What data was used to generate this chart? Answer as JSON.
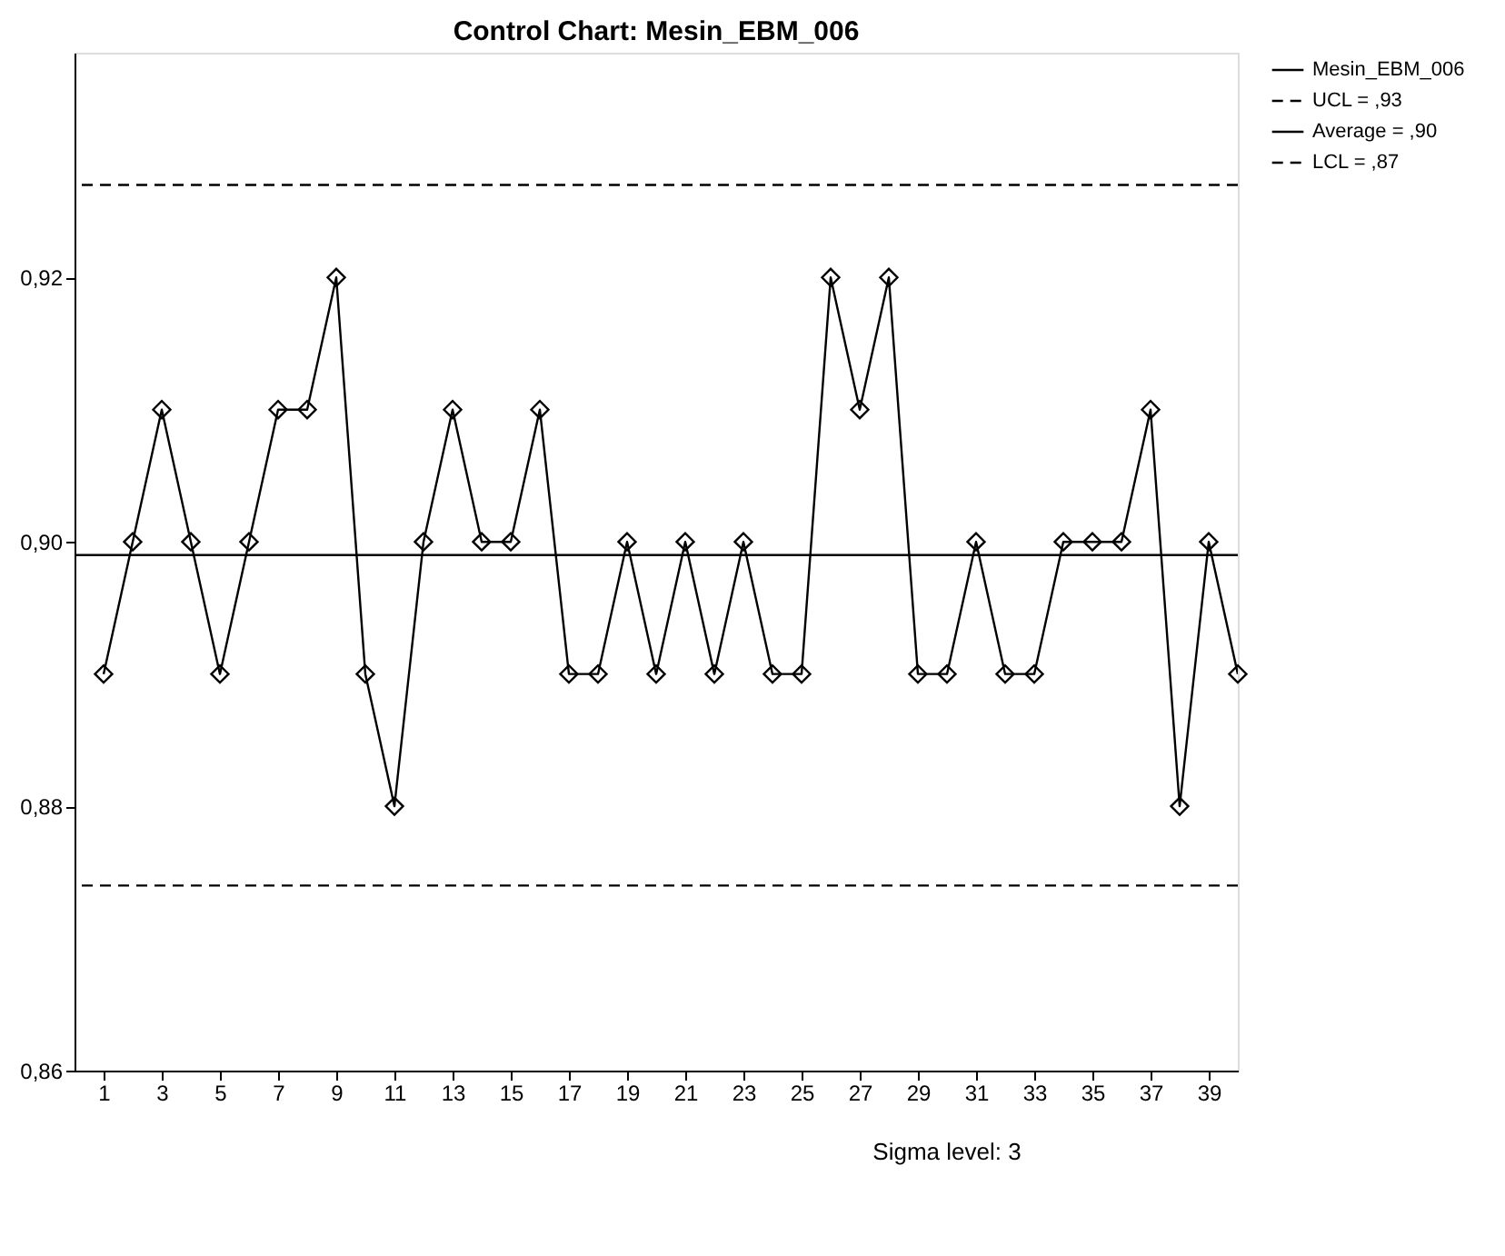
{
  "chart_data": {
    "type": "line",
    "title": "Control Chart: Mesin_EBM_006",
    "x": [
      1,
      2,
      3,
      4,
      5,
      6,
      7,
      8,
      9,
      10,
      11,
      12,
      13,
      14,
      15,
      16,
      17,
      18,
      19,
      20,
      21,
      22,
      23,
      24,
      25,
      26,
      27,
      28,
      29,
      30,
      31,
      32,
      33,
      34,
      35,
      36,
      37,
      38,
      39,
      40
    ],
    "series": [
      {
        "name": "Mesin_EBM_006",
        "color": "#000000",
        "values": [
          0.89,
          0.9,
          0.91,
          0.9,
          0.89,
          0.9,
          0.91,
          0.91,
          0.92,
          0.89,
          0.88,
          0.9,
          0.91,
          0.9,
          0.9,
          0.91,
          0.89,
          0.89,
          0.9,
          0.89,
          0.9,
          0.89,
          0.9,
          0.89,
          0.89,
          0.92,
          0.91,
          0.92,
          0.89,
          0.89,
          0.9,
          0.89,
          0.89,
          0.9,
          0.9,
          0.9,
          0.91,
          0.88,
          0.9,
          0.89
        ]
      }
    ],
    "marker": "diamond",
    "line_style": "solid",
    "ref_lines": [
      {
        "axis": "y",
        "value": 0.927,
        "label": "UCL = ,93",
        "line_style": "dashed",
        "color": "#000000"
      },
      {
        "axis": "y",
        "value": 0.899,
        "label": "Average = ,90",
        "line_style": "solid",
        "color": "#000000"
      },
      {
        "axis": "y",
        "value": 0.874,
        "label": "LCL = ,87",
        "line_style": "dashed",
        "color": "#000000"
      }
    ],
    "xlim": [
      0,
      40
    ],
    "xticks": [
      1,
      3,
      5,
      7,
      9,
      11,
      13,
      15,
      17,
      19,
      21,
      23,
      25,
      27,
      29,
      31,
      33,
      35,
      37,
      39
    ],
    "ylim": [
      0.86,
      0.937
    ],
    "yticks": [
      {
        "value": 0.86,
        "label": "0,86"
      },
      {
        "value": 0.88,
        "label": "0,88"
      },
      {
        "value": 0.9,
        "label": "0,90"
      },
      {
        "value": 0.92,
        "label": "0,92"
      }
    ],
    "annotations": [
      "Sigma level:      3"
    ],
    "legend": "top right",
    "grid": false
  }
}
